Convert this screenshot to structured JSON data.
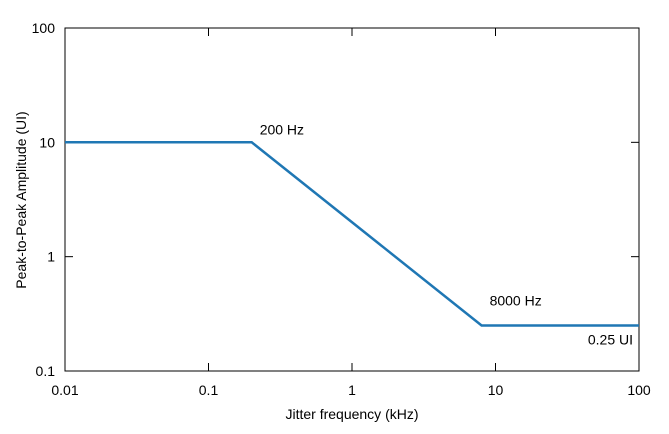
{
  "chart_data": {
    "type": "line",
    "title": "",
    "xlabel": "Jitter frequency (kHz)",
    "ylabel": "Peak-to-Peak Amplitude (UI)",
    "x_scale": "log",
    "y_scale": "log",
    "xlim": [
      0.01,
      100
    ],
    "ylim": [
      0.1,
      100
    ],
    "x_ticks": [
      {
        "value": 0.01,
        "label": "0.01"
      },
      {
        "value": 0.1,
        "label": "0.1"
      },
      {
        "value": 1,
        "label": "1"
      },
      {
        "value": 10,
        "label": "10"
      },
      {
        "value": 100,
        "label": "100"
      }
    ],
    "y_ticks": [
      {
        "value": 0.1,
        "label": "0.1"
      },
      {
        "value": 1,
        "label": "1"
      },
      {
        "value": 10,
        "label": "10"
      },
      {
        "value": 100,
        "label": "100"
      }
    ],
    "grid": false,
    "line_color": "#1f77b4",
    "series": [
      {
        "x": [
          0.01,
          0.2,
          8,
          100
        ],
        "y": [
          10,
          10,
          0.25,
          0.25
        ]
      }
    ],
    "annotations": [
      {
        "text": "200 Hz",
        "x": 0.2,
        "y": 10
      },
      {
        "text": "8000 Hz",
        "x": 8,
        "y": 0.25
      },
      {
        "text": "0.25 UI",
        "x": 100,
        "y": 0.25
      }
    ]
  }
}
